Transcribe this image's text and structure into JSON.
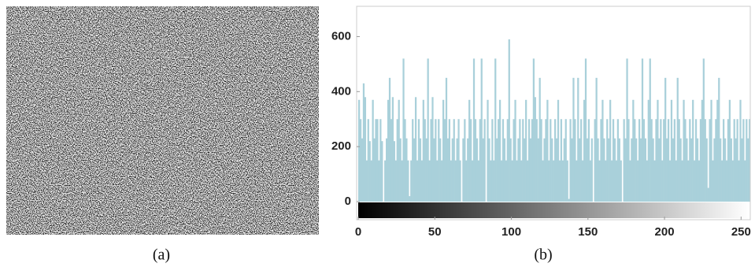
{
  "image_panel": {
    "caption": "(a)"
  },
  "chart_data": {
    "type": "bar",
    "caption": "(b)",
    "color": "#a9d0da",
    "xlim": [
      0,
      256
    ],
    "xticks": [
      0,
      50,
      100,
      150,
      200,
      250
    ],
    "ylim": [
      -60,
      710
    ],
    "yticks": [
      0,
      200,
      400,
      600
    ],
    "values": [
      370,
      300,
      230,
      430,
      380,
      150,
      300,
      220,
      150,
      370,
      230,
      300,
      300,
      150,
      300,
      220,
      0,
      150,
      230,
      370,
      450,
      300,
      380,
      220,
      150,
      300,
      370,
      230,
      150,
      520,
      300,
      230,
      150,
      20,
      150,
      300,
      230,
      380,
      150,
      300,
      230,
      150,
      370,
      300,
      230,
      520,
      150,
      300,
      380,
      230,
      300,
      150,
      300,
      230,
      150,
      370,
      300,
      450,
      230,
      300,
      150,
      230,
      300,
      150,
      230,
      300,
      150,
      0,
      230,
      300,
      150,
      230,
      370,
      300,
      150,
      520,
      300,
      230,
      150,
      300,
      520,
      230,
      300,
      0,
      370,
      230,
      150,
      300,
      150,
      520,
      230,
      300,
      370,
      150,
      300,
      230,
      150,
      300,
      590,
      230,
      150,
      300,
      370,
      150,
      230,
      300,
      150,
      300,
      230,
      370,
      150,
      300,
      230,
      300,
      520,
      380,
      300,
      230,
      450,
      300,
      150,
      230,
      300,
      370,
      150,
      300,
      230,
      150,
      300,
      230,
      370,
      150,
      300,
      150,
      230,
      300,
      150,
      10,
      300,
      230,
      450,
      300,
      150,
      450,
      230,
      300,
      150,
      370,
      520,
      230,
      300,
      150,
      230,
      0,
      300,
      450,
      230,
      150,
      300,
      370,
      230,
      150,
      300,
      230,
      370,
      150,
      300,
      230,
      150,
      300,
      230,
      150,
      0,
      300,
      230,
      520,
      300,
      150,
      230,
      370,
      300,
      230,
      150,
      300,
      230,
      520,
      300,
      230,
      150,
      370,
      520,
      300,
      230,
      150,
      300,
      370,
      230,
      300,
      150,
      300,
      450,
      230,
      300,
      150,
      370,
      230,
      300,
      150,
      450,
      300,
      230,
      150,
      370,
      300,
      230,
      150,
      300,
      230,
      370,
      150,
      300,
      230,
      150,
      300,
      370,
      520,
      300,
      230,
      50,
      300,
      370,
      150,
      230,
      300,
      370,
      450,
      230,
      150,
      300,
      230,
      150,
      300,
      370,
      230,
      150,
      300,
      230,
      300,
      150,
      370,
      230,
      300,
      150,
      300,
      230,
      300
    ]
  }
}
